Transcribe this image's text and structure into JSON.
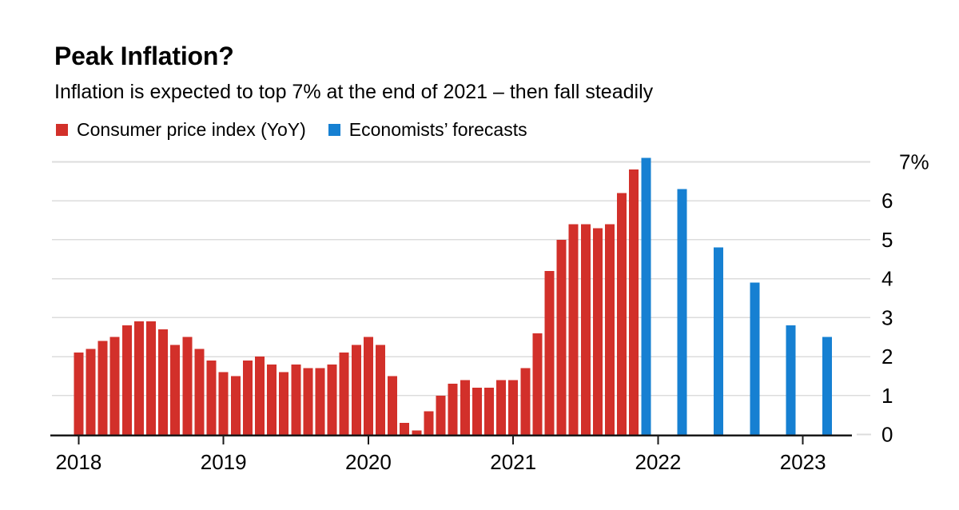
{
  "header": {
    "title": "Peak Inflation?",
    "subtitle": "Inflation is expected to top 7% at the end of 2021 – then fall steadily"
  },
  "legend": {
    "items": [
      {
        "label": "Consumer price index (YoY)",
        "color": "#d2302a",
        "swatch_icon": "red-square-swatch"
      },
      {
        "label": "Economists’ forecasts",
        "color": "#1680d2",
        "swatch_icon": "blue-square-swatch"
      }
    ]
  },
  "chart_data": {
    "type": "bar",
    "title": "Peak Inflation?",
    "subtitle": "Inflation is expected to top 7% at the end of 2021 – then fall steadily",
    "xlabel": "",
    "ylabel": "",
    "unit": "% year-over-year",
    "ylim": [
      0,
      7
    ],
    "grid": true,
    "y_axis_side": "right",
    "legend_position": "top",
    "y_ticks": [
      {
        "label": "7%",
        "value": 7
      },
      {
        "label": "6",
        "value": 6
      },
      {
        "label": "5",
        "value": 5
      },
      {
        "label": "4",
        "value": 4
      },
      {
        "label": "3",
        "value": 3
      },
      {
        "label": "2",
        "value": 2
      },
      {
        "label": "1",
        "value": 1
      },
      {
        "label": "0",
        "value": 0
      }
    ],
    "x_ticks": [
      "2018",
      "2019",
      "2020",
      "2021",
      "2022",
      "2023"
    ],
    "series": [
      {
        "name": "Consumer price index (YoY)",
        "color": "#d2302a",
        "cadence": "monthly",
        "points": [
          {
            "date": "2018-01",
            "value": 2.1
          },
          {
            "date": "2018-02",
            "value": 2.2
          },
          {
            "date": "2018-03",
            "value": 2.4
          },
          {
            "date": "2018-04",
            "value": 2.5
          },
          {
            "date": "2018-05",
            "value": 2.8
          },
          {
            "date": "2018-06",
            "value": 2.9
          },
          {
            "date": "2018-07",
            "value": 2.9
          },
          {
            "date": "2018-08",
            "value": 2.7
          },
          {
            "date": "2018-09",
            "value": 2.3
          },
          {
            "date": "2018-10",
            "value": 2.5
          },
          {
            "date": "2018-11",
            "value": 2.2
          },
          {
            "date": "2018-12",
            "value": 1.9
          },
          {
            "date": "2019-01",
            "value": 1.6
          },
          {
            "date": "2019-02",
            "value": 1.5
          },
          {
            "date": "2019-03",
            "value": 1.9
          },
          {
            "date": "2019-04",
            "value": 2.0
          },
          {
            "date": "2019-05",
            "value": 1.8
          },
          {
            "date": "2019-06",
            "value": 1.6
          },
          {
            "date": "2019-07",
            "value": 1.8
          },
          {
            "date": "2019-08",
            "value": 1.7
          },
          {
            "date": "2019-09",
            "value": 1.7
          },
          {
            "date": "2019-10",
            "value": 1.8
          },
          {
            "date": "2019-11",
            "value": 2.1
          },
          {
            "date": "2019-12",
            "value": 2.3
          },
          {
            "date": "2020-01",
            "value": 2.5
          },
          {
            "date": "2020-02",
            "value": 2.3
          },
          {
            "date": "2020-03",
            "value": 1.5
          },
          {
            "date": "2020-04",
            "value": 0.3
          },
          {
            "date": "2020-05",
            "value": 0.1
          },
          {
            "date": "2020-06",
            "value": 0.6
          },
          {
            "date": "2020-07",
            "value": 1.0
          },
          {
            "date": "2020-08",
            "value": 1.3
          },
          {
            "date": "2020-09",
            "value": 1.4
          },
          {
            "date": "2020-10",
            "value": 1.2
          },
          {
            "date": "2020-11",
            "value": 1.2
          },
          {
            "date": "2020-12",
            "value": 1.4
          },
          {
            "date": "2021-01",
            "value": 1.4
          },
          {
            "date": "2021-02",
            "value": 1.7
          },
          {
            "date": "2021-03",
            "value": 2.6
          },
          {
            "date": "2021-04",
            "value": 4.2
          },
          {
            "date": "2021-05",
            "value": 5.0
          },
          {
            "date": "2021-06",
            "value": 5.4
          },
          {
            "date": "2021-07",
            "value": 5.4
          },
          {
            "date": "2021-08",
            "value": 5.3
          },
          {
            "date": "2021-09",
            "value": 5.4
          },
          {
            "date": "2021-10",
            "value": 6.2
          },
          {
            "date": "2021-11",
            "value": 6.8
          }
        ]
      },
      {
        "name": "Economists’ forecasts",
        "color": "#1680d2",
        "cadence": "quarterly",
        "points": [
          {
            "date": "2021-12",
            "value": 7.1
          },
          {
            "date": "2022-03",
            "value": 6.3
          },
          {
            "date": "2022-06",
            "value": 4.8
          },
          {
            "date": "2022-09",
            "value": 3.9
          },
          {
            "date": "2022-12",
            "value": 2.8
          },
          {
            "date": "2023-03",
            "value": 2.5
          }
        ]
      }
    ]
  }
}
